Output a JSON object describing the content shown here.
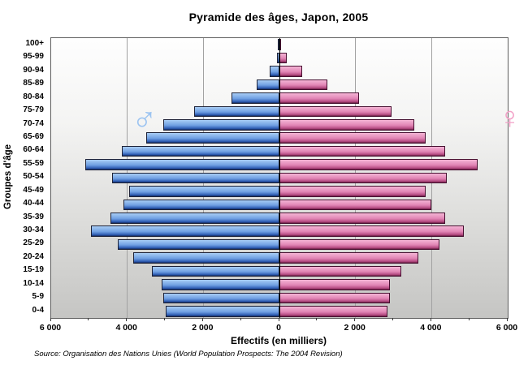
{
  "title": "Pyramide des âges, Japon, 2005",
  "y_axis_title": "Groupes d'âge",
  "x_axis_title": "Effectifs (en milliers)",
  "source": "Source: Organisation des Nations Unies (World Population Prospects: The 2004 Revision)",
  "symbols": {
    "male": "♂",
    "female": "♀"
  },
  "colors": {
    "male_symbol": "#9cc4f1",
    "female_symbol": "#f3a2c8",
    "male_bar_light": "#a9cdf5",
    "male_bar_mid": "#6f9fe2",
    "male_bar_deep": "#2f5db4",
    "male_bar_edge": "#142c63",
    "female_bar_light": "#f5b5d6",
    "female_bar_mid": "#e084b4",
    "female_bar_deep": "#b44a81",
    "female_bar_edge": "#691d43",
    "plot_bg_top": "#fefefe",
    "plot_bg_bottom": "#c5c5c3",
    "gridline": "#a2a2a2",
    "center_axis": "#000000"
  },
  "chart_data": {
    "type": "bar",
    "subtype": "population-pyramid",
    "title": "Pyramide des âges, Japon, 2005",
    "xlabel": "Effectifs (en milliers)",
    "ylabel": "Groupes d'âge",
    "grid": true,
    "xlim": [
      -6000,
      6000
    ],
    "x_tick_interval": 2000,
    "x_minor_tick_interval": 1000,
    "x_ticks": [
      "6 000",
      "4 000",
      "2 000",
      "0",
      "2 000",
      "4 000",
      "6 000"
    ],
    "categories": [
      "100+",
      "95-99",
      "90-94",
      "85-89",
      "80-84",
      "75-79",
      "70-74",
      "65-69",
      "60-64",
      "55-59",
      "50-54",
      "45-49",
      "40-44",
      "35-39",
      "30-34",
      "25-29",
      "20-24",
      "15-19",
      "10-14",
      "5-9",
      "0-4"
    ],
    "series": [
      {
        "name": "♂",
        "side": "left",
        "values": [
          10,
          60,
          250,
          600,
          1250,
          2250,
          3050,
          3500,
          4150,
          5100,
          4400,
          3950,
          4100,
          4450,
          4950,
          4250,
          3850,
          3350,
          3100,
          3050,
          3000
        ]
      },
      {
        "name": "♀",
        "side": "right",
        "values": [
          30,
          200,
          600,
          1250,
          2100,
          2950,
          3550,
          3850,
          4350,
          5200,
          4400,
          3850,
          4000,
          4350,
          4850,
          4200,
          3650,
          3200,
          2900,
          2900,
          2850
        ]
      }
    ]
  }
}
